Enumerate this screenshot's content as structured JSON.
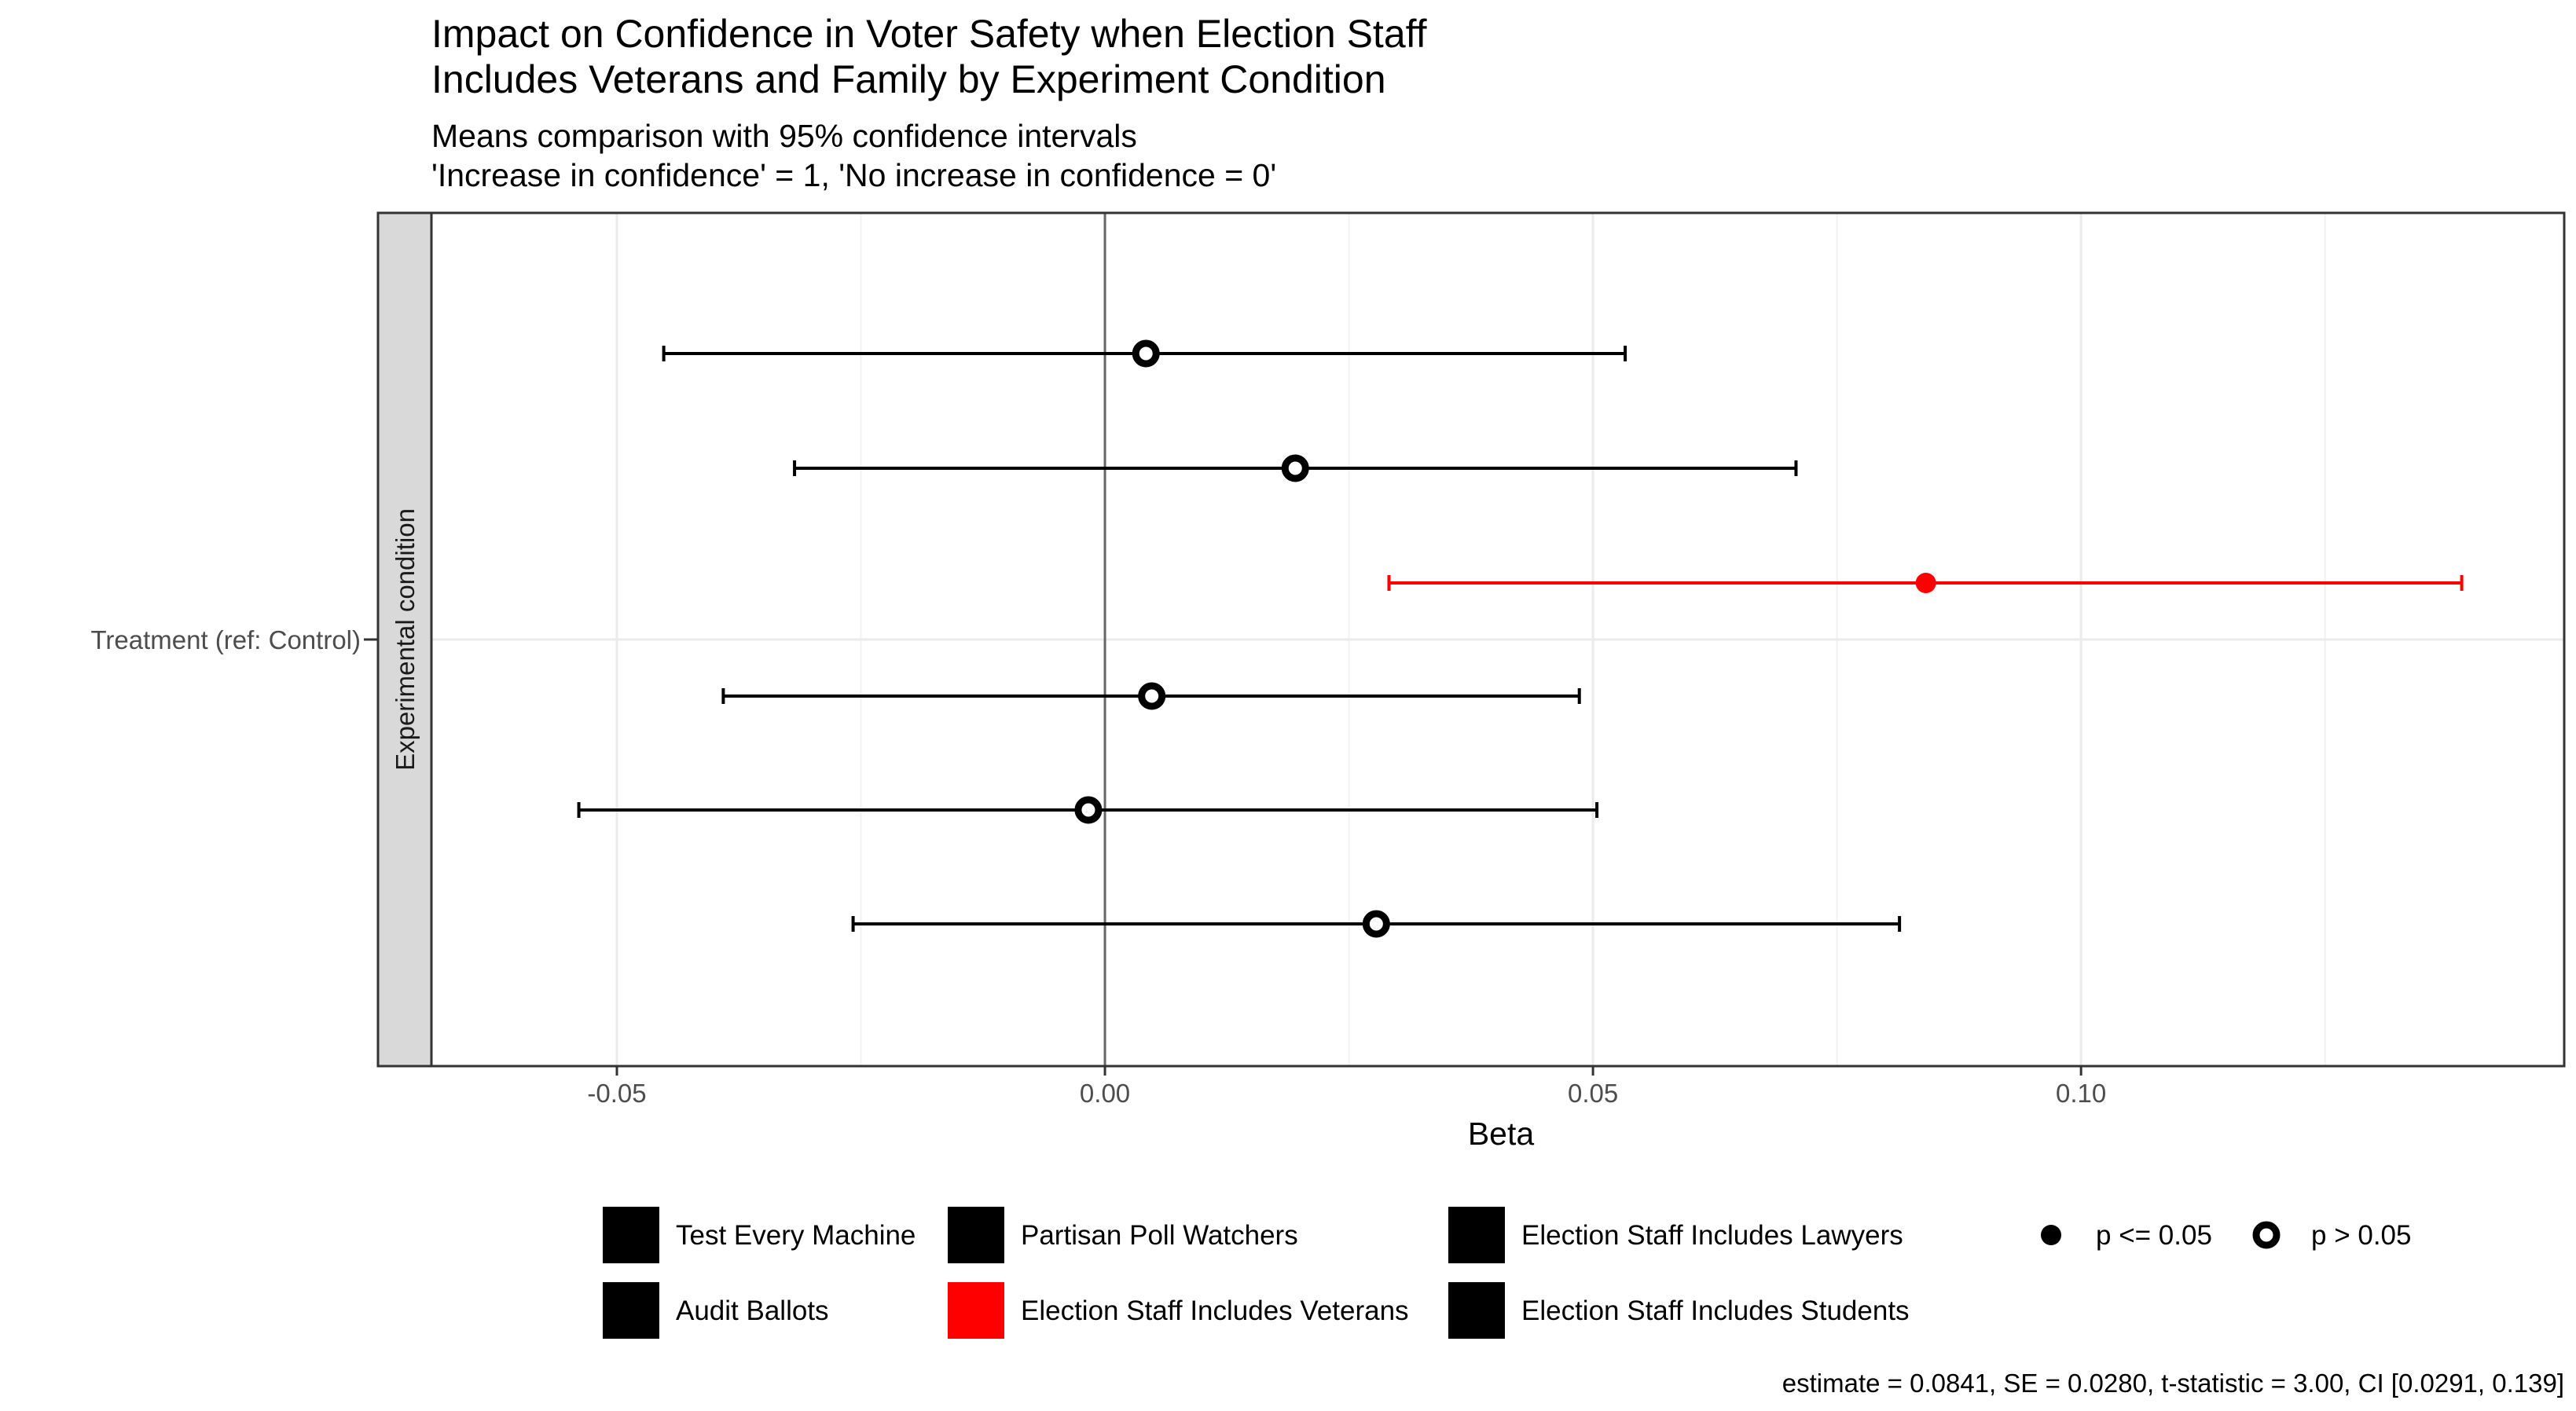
{
  "chart_data": {
    "type": "forest",
    "title_line1": "Impact on Confidence in Voter Safety when Election Staff",
    "title_line2": "Includes Veterans and Family by Experiment Condition",
    "subtitle_line1": "Means comparison with 95% confidence intervals",
    "subtitle_line2": "'Increase in confidence' = 1, 'No increase in confidence = 0'",
    "xlabel": "Beta",
    "facet_label": "Experimental condition",
    "y_category": "Treatment (ref: Control)",
    "xlim": [
      -0.069,
      0.1495
    ],
    "x_ticks": [
      -0.05,
      0.0,
      0.05,
      0.1
    ],
    "x_tick_labels": [
      "-0.05",
      "0.00",
      "0.05",
      "0.10"
    ],
    "grid": true,
    "series": [
      {
        "name": "Test Every Machine",
        "estimate": 0.0042,
        "ci": [
          -0.0452,
          0.0533
        ],
        "color": "#000000",
        "significant": false
      },
      {
        "name": "Partisan Poll Watchers",
        "estimate": 0.0195,
        "ci": [
          -0.0318,
          0.0708
        ],
        "color": "#000000",
        "significant": false
      },
      {
        "name": "Election Staff Includes Veterans",
        "estimate": 0.0841,
        "ci": [
          0.0291,
          0.139
        ],
        "color": "#ff0000",
        "significant": true
      },
      {
        "name": "Election Staff Includes Lawyers",
        "estimate": 0.0048,
        "ci": [
          -0.0391,
          0.0486
        ],
        "color": "#000000",
        "significant": false
      },
      {
        "name": "Audit Ballots",
        "estimate": -0.0017,
        "ci": [
          -0.0539,
          0.0504
        ],
        "color": "#000000",
        "significant": false
      },
      {
        "name": "Election Staff Includes Students",
        "estimate": 0.0278,
        "ci": [
          -0.0258,
          0.0814
        ],
        "color": "#000000",
        "significant": false
      }
    ],
    "legend": {
      "position": "bottom",
      "items": [
        {
          "label": "Test Every Machine",
          "color": "#000000"
        },
        {
          "label": "Partisan Poll Watchers",
          "color": "#000000"
        },
        {
          "label": "Election Staff Includes Lawyers",
          "color": "#000000"
        },
        {
          "label": "Audit Ballots",
          "color": "#000000"
        },
        {
          "label": "Election Staff Includes Veterans",
          "color": "#ff0000"
        },
        {
          "label": "Election Staff Includes Students",
          "color": "#000000"
        }
      ],
      "shape_items": [
        {
          "label": "p <= 0.05",
          "filled": true
        },
        {
          "label": "p > 0.05",
          "filled": false
        }
      ]
    },
    "caption": "estimate = 0.0841, SE = 0.0280, t-statistic = 3.00, CI [0.0291, 0.139]"
  }
}
